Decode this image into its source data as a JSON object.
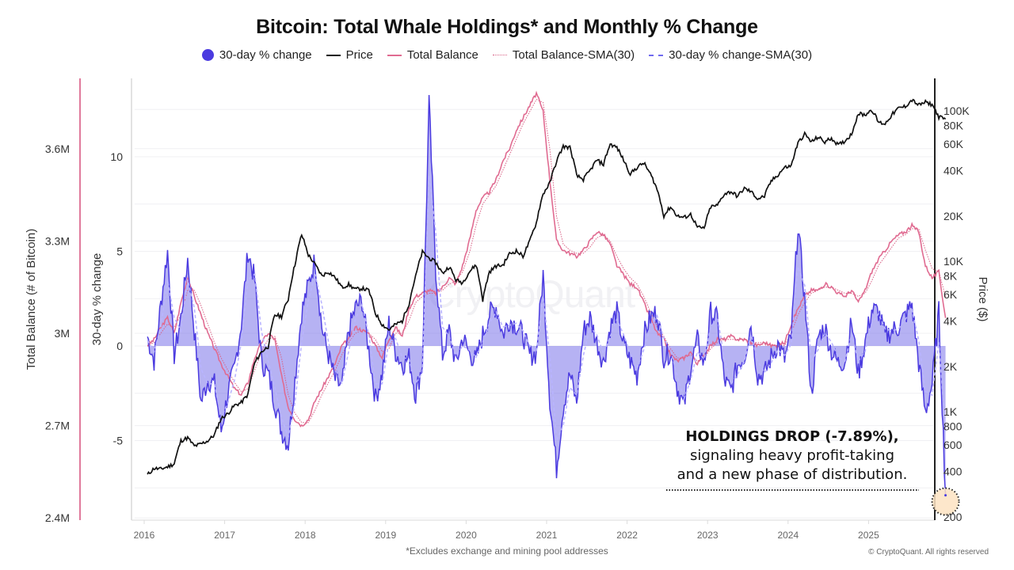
{
  "header": {
    "title": "Bitcoin: Total Whale Holdings* and Monthly % Change"
  },
  "legend": [
    {
      "label": "30-day % change",
      "icon": "filled-circle",
      "color": "#4b3be0"
    },
    {
      "label": "Price",
      "icon": "solid-line",
      "color": "#111111"
    },
    {
      "label": "Total Balance",
      "icon": "solid-line",
      "color": "#e06b91"
    },
    {
      "label": "Total Balance-SMA(30)",
      "icon": "dotted-line",
      "color": "#d86085"
    },
    {
      "label": "30-day % change-SMA(30)",
      "icon": "dashed-line",
      "color": "#6f6af0"
    }
  ],
  "footer": {
    "note": "*Excludes exchange and mining pool addresses",
    "copyright": "© CryptoQuant. All rights reserved"
  },
  "watermark": "CryptoQuant",
  "annotation": {
    "headline": "HOLDINGS DROP (-7.89%),",
    "line2": "signaling heavy profit-taking",
    "line3": "and a new phase of distribution."
  },
  "chart_data": {
    "type": "line",
    "title": "Bitcoin: Total Whale Holdings* and Monthly % Change",
    "xlabel": "",
    "x_ticks": [
      "2016",
      "2017",
      "2018",
      "2019",
      "2020",
      "2021",
      "2022",
      "2023",
      "2024",
      "2025"
    ],
    "x_range": [
      2016.0,
      2026.0
    ],
    "axes": {
      "left_balance": {
        "label": "Total Balance (# of Bitcoin)",
        "ticks": [
          "3.6M",
          "3.3M",
          "3M",
          "2.7M",
          "2.4M"
        ],
        "tick_values": [
          3.6,
          3.3,
          3.0,
          2.7,
          2.4
        ],
        "range_millions": [
          2.4,
          3.83
        ],
        "color": "#e06b91"
      },
      "left_pct": {
        "label": "30-day % change",
        "ticks": [
          "10",
          "5",
          "0",
          "-5"
        ],
        "tick_values": [
          10,
          5,
          0,
          -5
        ],
        "range": [
          -9.1,
          13.2
        ]
      },
      "right_price": {
        "label": "Price ($)",
        "scale": "log",
        "ticks": [
          "100K",
          "80K",
          "60K",
          "40K",
          "20K",
          "10K",
          "8K",
          "6K",
          "4K",
          "2K",
          "1K",
          "800",
          "600",
          "400",
          "200"
        ],
        "tick_values": [
          100000,
          80000,
          60000,
          40000,
          20000,
          10000,
          8000,
          6000,
          4000,
          2000,
          1000,
          800,
          600,
          400,
          200
        ],
        "range": [
          200,
          170000
        ]
      }
    },
    "grid": true,
    "legend_position": "top-center",
    "x_months": 120,
    "x_start": 2016.0,
    "x_step_years": 0.08333,
    "series": [
      {
        "name": "Price",
        "axis": "right_price",
        "color": "#111111",
        "values": [
          380,
          420,
          415,
          430,
          450,
          640,
          670,
          590,
          610,
          640,
          700,
          900,
          970,
          1100,
          1150,
          1300,
          2100,
          2500,
          2700,
          4400,
          4300,
          5600,
          9500,
          15000,
          11000,
          9500,
          8000,
          8500,
          7800,
          6700,
          7000,
          6500,
          6600,
          6400,
          4500,
          3800,
          3500,
          3800,
          4000,
          5200,
          7900,
          11500,
          10500,
          9800,
          8300,
          9200,
          7500,
          7200,
          8500,
          9500,
          5500,
          8500,
          9300,
          9400,
          11200,
          11700,
          10800,
          13500,
          18000,
          28000,
          33000,
          46000,
          58000,
          57000,
          37000,
          35000,
          40000,
          47000,
          44000,
          60000,
          57000,
          47000,
          38000,
          42000,
          45000,
          38000,
          30000,
          20000,
          23000,
          20000,
          19500,
          20500,
          16800,
          16500,
          23000,
          23500,
          28000,
          29000,
          27000,
          30500,
          29000,
          26000,
          27000,
          34000,
          37500,
          42000,
          43000,
          61000,
          70000,
          62000,
          67000,
          62000,
          66000,
          59000,
          63000,
          70000,
          96000,
          94000,
          102000,
          84000,
          82000,
          94000,
          104000,
          107000,
          118000,
          109000,
          114000,
          110000,
          91000,
          88000
        ]
      },
      {
        "name": "Total Balance",
        "axis": "left_balance",
        "unit": "millions BTC",
        "color": "#e06b91",
        "values": [
          2.96,
          2.98,
          3.02,
          3.05,
          3.0,
          3.1,
          3.18,
          3.12,
          3.06,
          3.0,
          2.95,
          2.9,
          2.86,
          2.82,
          2.8,
          2.84,
          2.92,
          2.97,
          3.0,
          2.98,
          2.86,
          2.76,
          2.72,
          2.7,
          2.72,
          2.78,
          2.82,
          2.86,
          2.9,
          2.96,
          2.98,
          3.02,
          3.01,
          3.0,
          2.96,
          2.92,
          2.98,
          3.02,
          2.99,
          3.08,
          3.12,
          3.13,
          3.14,
          3.13,
          3.15,
          3.18,
          3.16,
          3.22,
          3.3,
          3.4,
          3.44,
          3.46,
          3.5,
          3.56,
          3.6,
          3.66,
          3.7,
          3.74,
          3.78,
          3.72,
          3.5,
          3.3,
          3.27,
          3.26,
          3.25,
          3.27,
          3.3,
          3.33,
          3.32,
          3.29,
          3.22,
          3.19,
          3.16,
          3.15,
          3.1,
          3.05,
          3.0,
          2.98,
          2.93,
          2.91,
          2.92,
          2.94,
          2.9,
          2.93,
          2.96,
          2.98,
          2.98,
          2.99,
          2.98,
          2.98,
          2.97,
          2.96,
          2.97,
          2.96,
          2.96,
          2.97,
          3.03,
          3.08,
          3.12,
          3.14,
          3.14,
          3.16,
          3.15,
          3.13,
          3.12,
          3.14,
          3.1,
          3.14,
          3.2,
          3.24,
          3.27,
          3.3,
          3.32,
          3.33,
          3.35,
          3.33,
          3.22,
          3.18,
          3.2,
          3.05
        ]
      },
      {
        "name": "30-day % change",
        "axis": "left_pct",
        "unit": "%",
        "color": "#4b3be0",
        "values": [
          0.5,
          -0.8,
          2.2,
          5.0,
          -0.5,
          1.5,
          4.6,
          0.8,
          -3.0,
          -1.8,
          -2.0,
          -4.5,
          -2.5,
          -1.2,
          1.2,
          5.0,
          3.5,
          -0.8,
          -1.5,
          -3.0,
          -4.5,
          -5.2,
          -1.8,
          1.8,
          3.2,
          4.6,
          1.0,
          -0.5,
          -1.8,
          -2.2,
          0.8,
          2.0,
          2.4,
          -0.2,
          -2.8,
          -1.5,
          1.2,
          -0.3,
          -1.0,
          -0.6,
          -2.6,
          -0.9,
          12.8,
          4.0,
          -0.5,
          0.8,
          -1.0,
          0.5,
          -0.4,
          -0.8,
          0.6,
          1.7,
          2.1,
          0.6,
          1.4,
          1.1,
          0.6,
          -0.5,
          -0.4,
          3.8,
          -2.8,
          -6.5,
          -3.2,
          -1.5,
          -3.0,
          0.8,
          1.5,
          0.2,
          -0.9,
          1.0,
          1.8,
          0.1,
          -0.8,
          -1.6,
          0.6,
          1.5,
          1.8,
          -0.6,
          -0.3,
          -2.2,
          -3.2,
          -1.1,
          0.3,
          -1.0,
          1.8,
          1.4,
          -1.8,
          -2.4,
          -1.0,
          -0.6,
          1.2,
          -1.6,
          -1.5,
          -0.6,
          0.1,
          -0.7,
          0.5,
          6.4,
          2.5,
          -2.6,
          0.5,
          1.0,
          -0.3,
          -0.9,
          -0.8,
          1.3,
          -1.5,
          0.2,
          1.9,
          1.8,
          0.5,
          0.8,
          1.0,
          1.6,
          2.2,
          -0.9,
          -3.5,
          -2.0,
          1.8,
          -7.89
        ]
      },
      {
        "name": "Total Balance-SMA(30)",
        "axis": "left_balance",
        "unit": "millions BTC",
        "color": "#d86085",
        "style": "dotted",
        "values": [
          2.96,
          2.97,
          3.0,
          3.03,
          3.02,
          3.06,
          3.14,
          3.14,
          3.09,
          3.03,
          2.97,
          2.92,
          2.88,
          2.84,
          2.81,
          2.82,
          2.88,
          2.94,
          2.98,
          2.99,
          2.92,
          2.8,
          2.74,
          2.71,
          2.71,
          2.75,
          2.8,
          2.84,
          2.88,
          2.93,
          2.97,
          3.0,
          3.01,
          3.0,
          2.98,
          2.94,
          2.95,
          3.0,
          3.0,
          3.04,
          3.1,
          3.12,
          3.13,
          3.13,
          3.14,
          3.16,
          3.17,
          3.2,
          3.26,
          3.35,
          3.42,
          3.45,
          3.48,
          3.53,
          3.58,
          3.63,
          3.68,
          3.72,
          3.76,
          3.75,
          3.6,
          3.38,
          3.29,
          3.27,
          3.26,
          3.26,
          3.28,
          3.31,
          3.32,
          3.3,
          3.25,
          3.21,
          3.18,
          3.16,
          3.12,
          3.07,
          3.02,
          2.99,
          2.95,
          2.92,
          2.92,
          2.93,
          2.91,
          2.92,
          2.95,
          2.97,
          2.98,
          2.98,
          2.98,
          2.98,
          2.97,
          2.97,
          2.97,
          2.96,
          2.96,
          2.96,
          3.0,
          3.06,
          3.1,
          3.13,
          3.14,
          3.15,
          3.15,
          3.14,
          3.13,
          3.13,
          3.12,
          3.13,
          3.17,
          3.22,
          3.25,
          3.28,
          3.31,
          3.32,
          3.34,
          3.34,
          3.27,
          3.21,
          3.2,
          3.12
        ]
      },
      {
        "name": "30-day % change-SMA(30)",
        "axis": "left_pct",
        "unit": "%",
        "color": "#6f6af0",
        "style": "dashed",
        "values": [
          0.3,
          -0.3,
          1.0,
          3.5,
          1.5,
          0.8,
          3.5,
          2.0,
          -1.2,
          -2.0,
          -2.0,
          -3.8,
          -3.0,
          -1.8,
          0.2,
          3.5,
          3.8,
          0.8,
          -0.8,
          -2.2,
          -3.8,
          -4.8,
          -3.0,
          0.2,
          2.4,
          3.8,
          2.2,
          0.2,
          -1.2,
          -2.0,
          -0.3,
          1.4,
          2.2,
          0.6,
          -2.0,
          -2.0,
          0.2,
          0.4,
          -0.6,
          -0.7,
          -2.0,
          -1.4,
          9.0,
          6.0,
          1.0,
          0.5,
          -0.5,
          0.0,
          -0.2,
          -0.6,
          0.2,
          1.2,
          1.8,
          1.0,
          1.1,
          1.2,
          0.8,
          0.0,
          -0.3,
          2.6,
          -0.5,
          -5.0,
          -4.2,
          -2.2,
          -2.6,
          -0.5,
          1.0,
          0.6,
          -0.4,
          0.5,
          1.4,
          0.6,
          -0.4,
          -1.2,
          -0.2,
          1.0,
          1.6,
          0.4,
          -0.2,
          -1.6,
          -2.8,
          -1.8,
          -0.3,
          -0.7,
          1.0,
          1.5,
          -0.6,
          -2.0,
          -1.5,
          -0.8,
          0.6,
          -0.8,
          -1.4,
          -0.9,
          -0.2,
          -0.5,
          0.1,
          4.2,
          3.2,
          -0.8,
          -0.2,
          0.7,
          0.2,
          -0.6,
          -0.8,
          0.6,
          -0.8,
          -0.3,
          1.2,
          1.7,
          0.9,
          0.8,
          0.9,
          1.4,
          1.9,
          0.3,
          -2.4,
          -2.6,
          0.2,
          -4.5
        ]
      }
    ],
    "annotations": [
      {
        "text": "HOLDINGS DROP (-7.89%), signaling heavy profit-taking and a new phase of distribution.",
        "target_series": "30-day % change",
        "target_value": -7.89,
        "marker": "dotted-circle-highlight",
        "marker_color": "#fde3c2"
      }
    ]
  }
}
